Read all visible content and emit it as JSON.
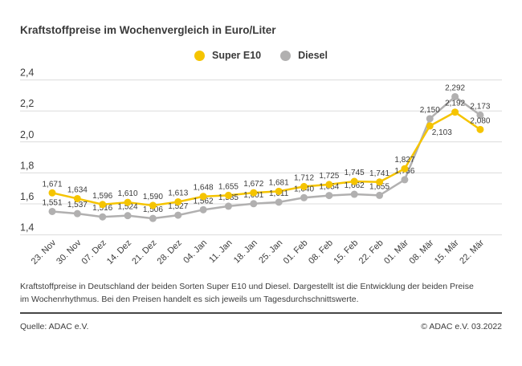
{
  "title": "Kraftstoffpreise im Wochenvergleich in Euro/Liter",
  "chart_data": {
    "type": "line",
    "title": "Kraftstoffpreise im Wochenvergleich in Euro/Liter",
    "unit": "Euro/Liter",
    "categories": [
      "23. Nov",
      "30. Nov",
      "07. Dez",
      "14. Dez",
      "21. Dez",
      "28. Dez",
      "04. Jan",
      "11. Jan",
      "18. Jan",
      "25. Jan",
      "01. Feb",
      "08. Feb",
      "15. Feb",
      "22. Feb",
      "01. Mär",
      "08. Mär",
      "15. Mär",
      "22. Mär"
    ],
    "series": [
      {
        "name": "Super E10",
        "color": "#f5c400",
        "values": [
          1.671,
          1.634,
          1.596,
          1.61,
          1.59,
          1.613,
          1.648,
          1.655,
          1.672,
          1.681,
          1.712,
          1.725,
          1.745,
          1.741,
          1.827,
          2.103,
          2.192,
          2.08
        ]
      },
      {
        "name": "Diesel",
        "color": "#b1b0b0",
        "values": [
          1.551,
          1.537,
          1.516,
          1.524,
          1.506,
          1.527,
          1.562,
          1.585,
          1.601,
          1.611,
          1.64,
          1.654,
          1.662,
          1.655,
          1.756,
          2.15,
          2.292,
          2.173
        ]
      }
    ],
    "ylim": [
      1.4,
      2.4
    ],
    "yticks": [
      2.4,
      2.2,
      2.0,
      1.8,
      1.6,
      1.4
    ],
    "grid": true,
    "legend_position": "top-center",
    "decimal_separator": ",",
    "colors": {
      "grid": "#dcdcdc",
      "label_text": "#3c3c3c"
    }
  },
  "description": "Kraftstoffpreise in Deutschland der beiden Sorten Super E10 und Diesel. Dargestellt ist die Entwicklung der beiden Preise im Wochenrhythmus. Bei den Preisen handelt es sich jeweils um Tagesdurchschnittswerte.",
  "footer": {
    "source": "Quelle: ADAC e.V.",
    "copyright": "© ADAC e.V. 03.2022"
  }
}
